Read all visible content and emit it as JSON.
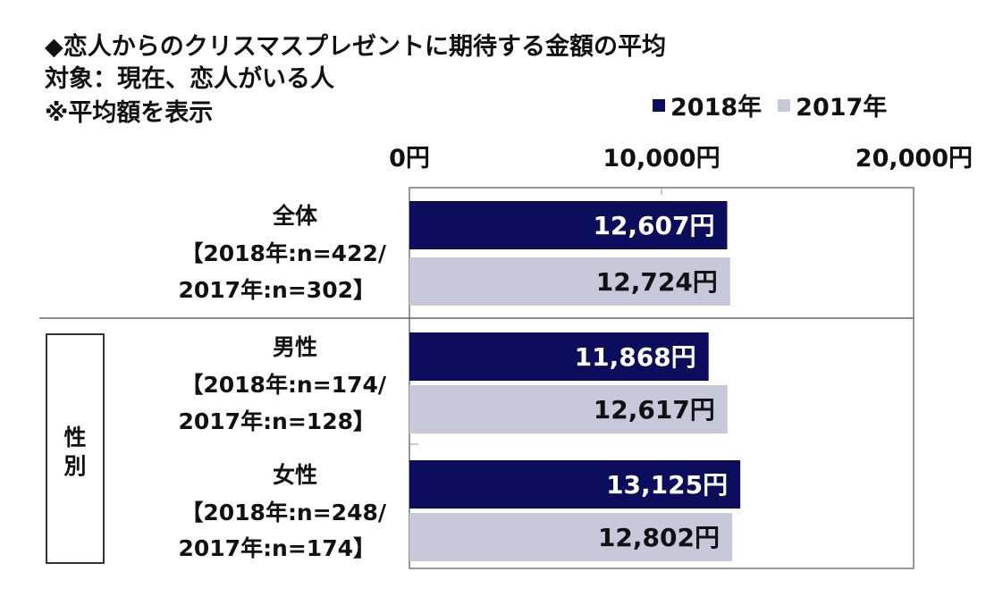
{
  "titles": {
    "line1": "◆恋人からのクリスマスプレゼントに期待する金額の平均",
    "line2": "対象：現在、恋人がいる人",
    "line3": "※平均額を表示"
  },
  "colors": {
    "series_2018": "#0d0d5e",
    "series_2017": "#c5c9da",
    "value_on_2018": "#ffffff",
    "value_on_2017": "#111111",
    "frame": "#777777"
  },
  "group_box_label": "性別",
  "chart_data": {
    "type": "bar",
    "orientation": "horizontal",
    "unit": "円",
    "xlim": [
      0,
      20000
    ],
    "x_ticks": [
      "0円",
      "10,000円",
      "20,000円"
    ],
    "legend": {
      "position": "top-right",
      "entries": [
        "2018年",
        "2017年"
      ]
    },
    "categories": [
      {
        "name": "全体",
        "n_line1": "【2018年:n=422/",
        "n_line2": "2017年:n=302】"
      },
      {
        "name": "男性",
        "n_line1": "【2018年:n=174/",
        "n_line2": "2017年:n=128】"
      },
      {
        "name": "女性",
        "n_line1": "【2018年:n=248/",
        "n_line2": "2017年:n=174】"
      }
    ],
    "series": [
      {
        "name": "2018年",
        "values": [
          12607,
          11868,
          13125
        ],
        "labels": [
          "12,607円",
          "11,868円",
          "13,125円"
        ]
      },
      {
        "name": "2017年",
        "values": [
          12724,
          12617,
          12802
        ],
        "labels": [
          "12,724円",
          "12,617円",
          "12,802円"
        ]
      }
    ]
  }
}
